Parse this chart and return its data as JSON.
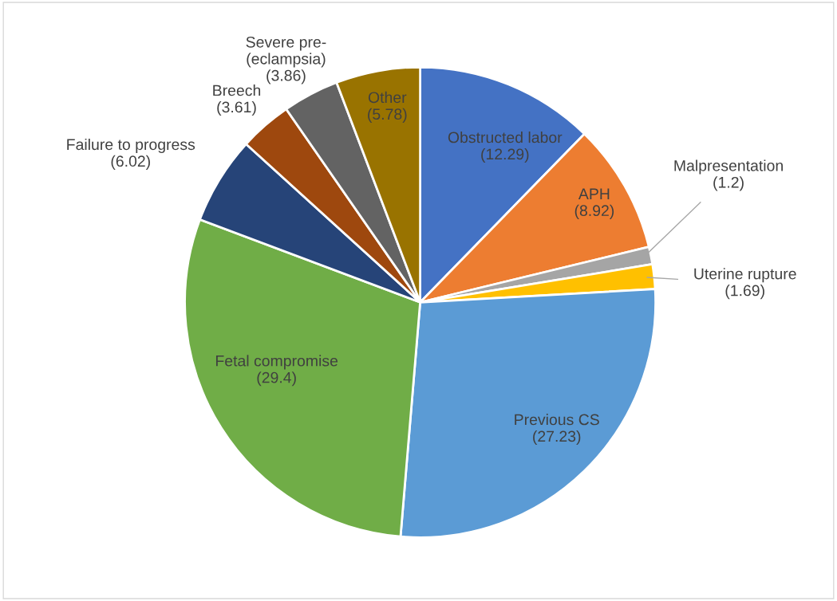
{
  "chart_data": {
    "type": "pie",
    "categories": [
      "Obstructed labor",
      "APH",
      "Malpresentation",
      "Uterine rupture",
      "Previous CS",
      "Fetal compromise",
      "Failure to progress",
      "Breech",
      "Severe pre-\n(eclampsia)",
      "Other"
    ],
    "values": [
      12.29,
      8.92,
      1.2,
      1.69,
      27.23,
      29.4,
      6.02,
      3.61,
      3.86,
      5.78
    ],
    "colors": [
      "#4472c4",
      "#ed7d31",
      "#a5a5a5",
      "#ffc000",
      "#5b9bd5",
      "#70ad47",
      "#264478",
      "#9e480e",
      "#636363",
      "#997300"
    ],
    "value_labels": [
      "(12.29)",
      "(8.92)",
      "(1.2)",
      "(1.69)",
      "(27.23)",
      "(29.4)",
      "(6.02)",
      "(3.61)",
      "(3.86)",
      "(5.78)"
    ]
  }
}
